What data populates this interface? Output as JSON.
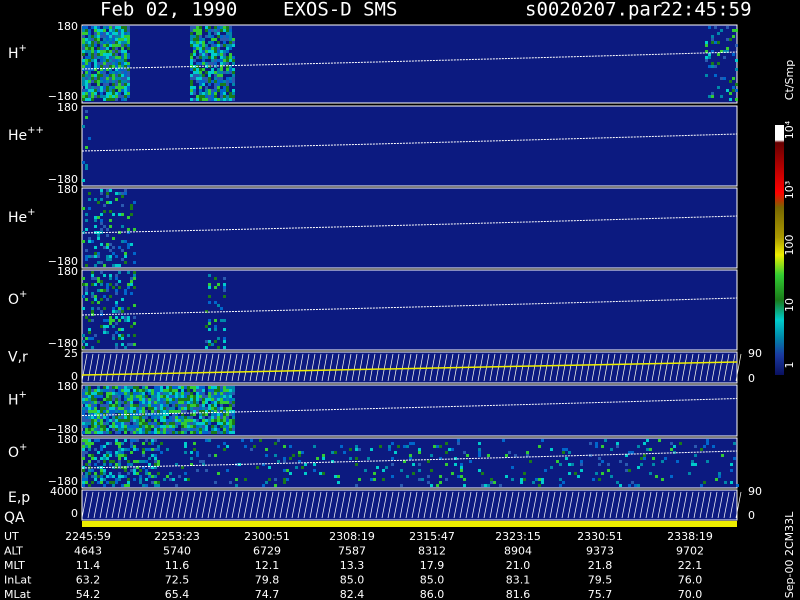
{
  "header": {
    "date": "Feb 02, 1990",
    "instrument": "EXOS-D SMS",
    "file": "s0020207.par",
    "time": "22:45:59"
  },
  "panels": [
    {
      "label": "H",
      "sup": "+",
      "ticks": [
        "180",
        "−180"
      ]
    },
    {
      "label": "He",
      "sup": "++",
      "ticks": [
        "180",
        "−180"
      ]
    },
    {
      "label": "He",
      "sup": "+",
      "ticks": [
        "180",
        "−180"
      ]
    },
    {
      "label": "O",
      "sup": "+",
      "ticks": [
        "180",
        "−180"
      ]
    },
    {
      "label": "V,r",
      "ticks": [
        "25",
        "0"
      ],
      "right_ticks": [
        "90",
        "0"
      ]
    },
    {
      "label": "H",
      "sup": "+",
      "ticks": [
        "180",
        "−180"
      ]
    },
    {
      "label": "O",
      "sup": "+",
      "ticks": [
        "180",
        "−180"
      ]
    },
    {
      "label": "E,p",
      "ticks": [
        "4000",
        "0"
      ],
      "right_ticks": [
        "90",
        "0"
      ]
    }
  ],
  "qa_label": "QA",
  "colorbar": {
    "unit": "Ct/Smp",
    "labels": [
      "10⁴",
      "10³",
      "100",
      "10",
      "1"
    ]
  },
  "side_note": "Sep-00  2CM33L",
  "table": {
    "rows": [
      [
        "UT",
        "2245:59",
        "2253:23",
        "2300:51",
        "2308:19",
        "2315:47",
        "2323:15",
        "2330:51",
        "2338:19"
      ],
      [
        "ALT",
        "4643",
        "5740",
        "6729",
        "7587",
        "8312",
        "8904",
        "9373",
        "9702"
      ],
      [
        "MLT",
        "11.4",
        "11.6",
        "12.1",
        "13.3",
        "17.9",
        "21.0",
        "21.8",
        "22.1"
      ],
      [
        "InLat",
        "63.2",
        "72.5",
        "79.8",
        "85.0",
        "85.0",
        "83.1",
        "79.5",
        "76.0"
      ],
      [
        "MLat",
        "54.2",
        "65.4",
        "74.7",
        "82.4",
        "86.0",
        "81.6",
        "75.7",
        "70.0"
      ]
    ]
  }
}
